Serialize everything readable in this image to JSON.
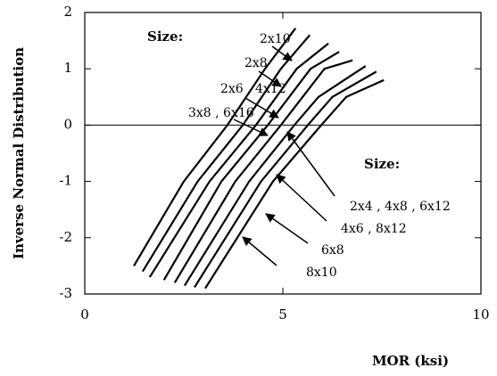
{
  "chart_data": {
    "type": "line",
    "x_label": "MOR (ksi)",
    "y_label": "Inverse Normal Distribution",
    "xlim": [
      0,
      10
    ],
    "xticks": [
      0,
      5,
      10
    ],
    "ylim": [
      -3,
      2
    ],
    "yticks": [
      2,
      1,
      0,
      -1,
      -2,
      -3
    ],
    "reference_line": 0,
    "color": "#000000",
    "annotations": [
      "Size:",
      "Size:"
    ],
    "series": [
      {
        "name": "2x10",
        "x": [
          1.24,
          2.5,
          3.6,
          4.55,
          5.32
        ],
        "values": [
          -2.5,
          -1,
          0,
          1,
          1.72
        ]
      },
      {
        "name": "2x8",
        "x": [
          1.46,
          2.85,
          3.99,
          4.95,
          5.68
        ],
        "values": [
          -2.6,
          -1,
          0,
          1,
          1.6
        ]
      },
      {
        "name": "2x6 , 4x12",
        "x": [
          1.64,
          3.15,
          4.32,
          5.35,
          6.15
        ],
        "values": [
          -2.7,
          -1,
          0,
          1,
          1.45
        ]
      },
      {
        "name": "3x8 , 6x16",
        "x": [
          2.0,
          3.45,
          4.62,
          5.7,
          6.42
        ],
        "values": [
          -2.75,
          -1,
          0,
          1,
          1.3
        ]
      },
      {
        "name": "2x4 , 4x8 , 6x12",
        "x": [
          2.27,
          3.8,
          4.95,
          6.05,
          6.76
        ],
        "values": [
          -2.8,
          -1,
          0,
          1,
          1.15
        ]
      },
      {
        "name": "4x6 , 8x12",
        "x": [
          2.52,
          4.15,
          5.29,
          5.9,
          7.09
        ],
        "values": [
          -2.85,
          -1,
          0,
          0.5,
          1.05
        ]
      },
      {
        "name": "6x8",
        "x": [
          2.77,
          4.45,
          5.63,
          6.25,
          7.36
        ],
        "values": [
          -2.88,
          -1,
          0,
          0.5,
          0.95
        ]
      },
      {
        "name": "8x10",
        "x": [
          3.04,
          4.75,
          5.97,
          6.6,
          7.55
        ],
        "values": [
          -2.9,
          -1,
          0,
          0.5,
          0.8
        ]
      }
    ]
  }
}
